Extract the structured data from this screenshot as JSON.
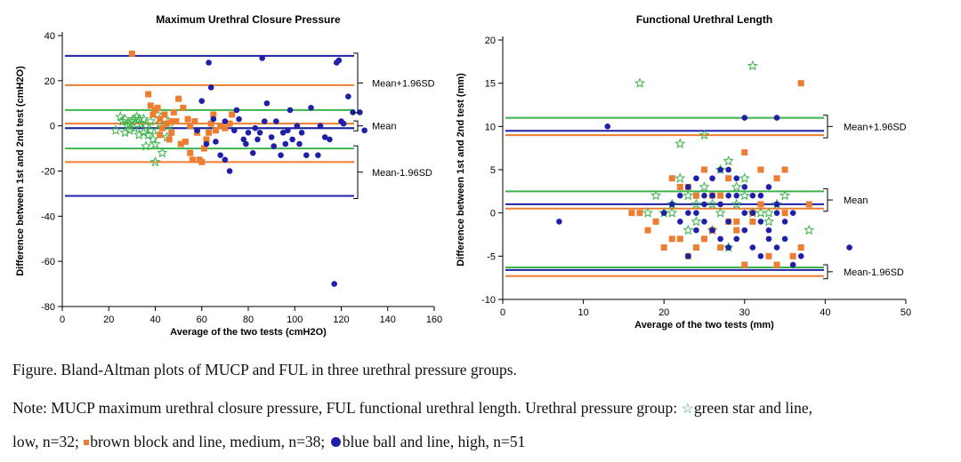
{
  "colors": {
    "low": "#3cb44b",
    "medium": "#ed7d31",
    "high": "#1f1fa8"
  },
  "chart_data": [
    {
      "type": "scatter",
      "title": "Maximum Urethral Closure Pressure",
      "xlabel": "Average of the two tests (cmH2O)",
      "ylabel": "Difference between 1st and 2nd test (cmH2O)",
      "xlim": [
        0,
        160
      ],
      "ylim": [
        -80,
        40
      ],
      "xticks": [
        0,
        20,
        40,
        60,
        80,
        100,
        120,
        140,
        160
      ],
      "yticks": [
        -80,
        -60,
        -40,
        -20,
        0,
        20,
        40
      ],
      "grid": false,
      "lines": [
        {
          "group": "high",
          "value": 31
        },
        {
          "group": "medium",
          "value": 18
        },
        {
          "group": "low",
          "value": 7
        },
        {
          "group": "medium",
          "value": 1
        },
        {
          "group": "low",
          "value": -1
        },
        {
          "group": "high",
          "value": -1
        },
        {
          "group": "low",
          "value": -10
        },
        {
          "group": "medium",
          "value": -16
        },
        {
          "group": "high",
          "value": -31
        }
      ],
      "brackets": [
        {
          "label": "Mean+1.96SD",
          "from": 31,
          "to": 7
        },
        {
          "label": "Mean",
          "from": 1,
          "to": -1
        },
        {
          "label": "Mean-1.96SD",
          "from": -10,
          "to": -31
        }
      ],
      "series": [
        {
          "group": "low",
          "marker": "star",
          "points": [
            [
              25,
              4
            ],
            [
              26,
              2
            ],
            [
              27,
              3
            ],
            [
              28,
              0
            ],
            [
              29,
              -2
            ],
            [
              30,
              2
            ],
            [
              31,
              -1
            ],
            [
              32,
              4
            ],
            [
              33,
              3
            ],
            [
              34,
              1
            ],
            [
              35,
              -3
            ],
            [
              36,
              0
            ],
            [
              37,
              -4
            ],
            [
              38,
              2
            ],
            [
              39,
              -6
            ],
            [
              40,
              -8
            ],
            [
              40,
              -16
            ],
            [
              41,
              -2
            ],
            [
              42,
              1
            ],
            [
              43,
              -12
            ],
            [
              44,
              3
            ],
            [
              45,
              -5
            ],
            [
              46,
              0
            ],
            [
              23,
              -2
            ],
            [
              27,
              -3
            ],
            [
              33,
              -4
            ],
            [
              35,
              3
            ],
            [
              38,
              -2
            ],
            [
              41,
              5
            ],
            [
              29,
              1
            ],
            [
              31,
              3
            ],
            [
              36,
              -9
            ]
          ]
        },
        {
          "group": "medium",
          "marker": "square",
          "points": [
            [
              30,
              32
            ],
            [
              37,
              14
            ],
            [
              38,
              9
            ],
            [
              39,
              5
            ],
            [
              40,
              7
            ],
            [
              41,
              8
            ],
            [
              42,
              3
            ],
            [
              43,
              -1
            ],
            [
              44,
              5
            ],
            [
              45,
              1
            ],
            [
              46,
              -6
            ],
            [
              47,
              2
            ],
            [
              48,
              6
            ],
            [
              50,
              12
            ],
            [
              51,
              -8
            ],
            [
              52,
              8
            ],
            [
              54,
              3
            ],
            [
              55,
              0
            ],
            [
              56,
              -15
            ],
            [
              57,
              2
            ],
            [
              58,
              -3
            ],
            [
              59,
              -15
            ],
            [
              60,
              -16
            ],
            [
              61,
              -10
            ],
            [
              62,
              -6
            ],
            [
              63,
              -3
            ],
            [
              64,
              1
            ],
            [
              65,
              5
            ],
            [
              66,
              -2
            ],
            [
              68,
              0
            ],
            [
              70,
              -1
            ],
            [
              72,
              1
            ],
            [
              73,
              5
            ],
            [
              42,
              -4
            ],
            [
              47,
              -3
            ],
            [
              49,
              2
            ],
            [
              53,
              -7
            ],
            [
              55,
              -12
            ]
          ]
        },
        {
          "group": "high",
          "marker": "circle",
          "points": [
            [
              58,
              -2
            ],
            [
              60,
              11
            ],
            [
              62,
              -8
            ],
            [
              63,
              28
            ],
            [
              64,
              17
            ],
            [
              66,
              -7
            ],
            [
              68,
              -13
            ],
            [
              70,
              -15
            ],
            [
              72,
              -20
            ],
            [
              74,
              -2
            ],
            [
              76,
              3
            ],
            [
              78,
              -6
            ],
            [
              80,
              -3
            ],
            [
              82,
              -12
            ],
            [
              84,
              -6
            ],
            [
              86,
              30
            ],
            [
              88,
              10
            ],
            [
              90,
              -5
            ],
            [
              92,
              2
            ],
            [
              94,
              -13
            ],
            [
              96,
              -8
            ],
            [
              97,
              -2
            ],
            [
              99,
              -6
            ],
            [
              101,
              0
            ],
            [
              103,
              -3
            ],
            [
              105,
              -13
            ],
            [
              107,
              8
            ],
            [
              110,
              -13
            ],
            [
              113,
              -5
            ],
            [
              115,
              -6
            ],
            [
              117,
              -70
            ],
            [
              118,
              28
            ],
            [
              119,
              29
            ],
            [
              120,
              2
            ],
            [
              123,
              13
            ],
            [
              125,
              6
            ],
            [
              128,
              6
            ],
            [
              130,
              -2
            ],
            [
              65,
              3
            ],
            [
              75,
              7
            ],
            [
              79,
              -8
            ],
            [
              83,
              -1
            ],
            [
              87,
              2
            ],
            [
              91,
              -9
            ],
            [
              95,
              -3
            ],
            [
              98,
              7
            ],
            [
              102,
              -8
            ],
            [
              111,
              0
            ],
            [
              121,
              1
            ],
            [
              70,
              2
            ],
            [
              85,
              -3
            ]
          ]
        }
      ]
    },
    {
      "type": "scatter",
      "title": "Functional Urethral Length",
      "xlabel": "Average of the two tests (mm)",
      "ylabel": "Difference between 1st and 2nd test (mm)",
      "xlim": [
        0,
        50
      ],
      "ylim": [
        -10,
        20
      ],
      "xticks": [
        0,
        10,
        20,
        30,
        40,
        50
      ],
      "yticks": [
        -10,
        -5,
        0,
        5,
        10,
        15,
        20
      ],
      "grid": false,
      "lines": [
        {
          "group": "low",
          "value": 11
        },
        {
          "group": "high",
          "value": 9.5
        },
        {
          "group": "medium",
          "value": 9
        },
        {
          "group": "low",
          "value": 2.5
        },
        {
          "group": "high",
          "value": 1
        },
        {
          "group": "medium",
          "value": 0.5
        },
        {
          "group": "low",
          "value": -6.3
        },
        {
          "group": "high",
          "value": -6.6
        },
        {
          "group": "medium",
          "value": -7.3
        }
      ],
      "brackets": [
        {
          "label": "Mean+1.96SD",
          "from": 11,
          "to": 9
        },
        {
          "label": "Mean",
          "from": 2.5,
          "to": 0.5
        },
        {
          "label": "Mean-1.96SD",
          "from": -6.3,
          "to": -7.3
        }
      ],
      "series": [
        {
          "group": "low",
          "marker": "star",
          "points": [
            [
              17,
              15
            ],
            [
              31,
              17
            ],
            [
              22,
              8
            ],
            [
              25,
              9
            ],
            [
              19,
              2
            ],
            [
              20,
              0
            ],
            [
              21,
              0
            ],
            [
              22,
              4
            ],
            [
              23,
              2
            ],
            [
              24,
              -1
            ],
            [
              25,
              3
            ],
            [
              26,
              1
            ],
            [
              27,
              5
            ],
            [
              28,
              6
            ],
            [
              29,
              3
            ],
            [
              30,
              2
            ],
            [
              31,
              0
            ],
            [
              32,
              0
            ],
            [
              33,
              -1
            ],
            [
              34,
              1
            ],
            [
              35,
              2
            ],
            [
              38,
              -2
            ],
            [
              18,
              0
            ],
            [
              21,
              1
            ],
            [
              24,
              1
            ],
            [
              26,
              -2
            ],
            [
              28,
              -4
            ],
            [
              30,
              4
            ],
            [
              27,
              0
            ],
            [
              33,
              0
            ],
            [
              23,
              -2
            ],
            [
              29,
              1
            ]
          ]
        },
        {
          "group": "medium",
          "marker": "square",
          "points": [
            [
              37,
              15
            ],
            [
              16,
              0
            ],
            [
              17,
              0
            ],
            [
              18,
              -2
            ],
            [
              19,
              -1
            ],
            [
              20,
              -4
            ],
            [
              21,
              -3
            ],
            [
              22,
              -3
            ],
            [
              23,
              -5
            ],
            [
              24,
              -4
            ],
            [
              25,
              -3
            ],
            [
              26,
              -2
            ],
            [
              27,
              -4
            ],
            [
              28,
              -1
            ],
            [
              29,
              -1
            ],
            [
              30,
              -6
            ],
            [
              31,
              0
            ],
            [
              32,
              1
            ],
            [
              33,
              -5
            ],
            [
              34,
              -6
            ],
            [
              35,
              0
            ],
            [
              36,
              -5
            ],
            [
              37,
              -4
            ],
            [
              38,
              1
            ],
            [
              21,
              4
            ],
            [
              22,
              3
            ],
            [
              24,
              2
            ],
            [
              25,
              5
            ],
            [
              27,
              2
            ],
            [
              28,
              4
            ],
            [
              30,
              7
            ],
            [
              32,
              5
            ],
            [
              34,
              4
            ],
            [
              35,
              5
            ],
            [
              23,
              3
            ],
            [
              26,
              2
            ],
            [
              29,
              -2
            ],
            [
              31,
              -1
            ]
          ]
        },
        {
          "group": "high",
          "marker": "circle",
          "points": [
            [
              7,
              -1
            ],
            [
              13,
              10
            ],
            [
              30,
              11
            ],
            [
              34,
              11
            ],
            [
              20,
              0
            ],
            [
              21,
              1
            ],
            [
              22,
              2
            ],
            [
              23,
              -5
            ],
            [
              24,
              4
            ],
            [
              25,
              -1
            ],
            [
              26,
              2
            ],
            [
              27,
              5
            ],
            [
              28,
              -4
            ],
            [
              29,
              2
            ],
            [
              30,
              3
            ],
            [
              31,
              0
            ],
            [
              32,
              -5
            ],
            [
              33,
              -2
            ],
            [
              34,
              0
            ],
            [
              35,
              -1
            ],
            [
              36,
              -6
            ],
            [
              37,
              -5
            ],
            [
              43,
              -4
            ],
            [
              24,
              0
            ],
            [
              26,
              -2
            ],
            [
              28,
              5
            ],
            [
              30,
              -2
            ],
            [
              32,
              2
            ],
            [
              34,
              1
            ],
            [
              22,
              -1
            ],
            [
              23,
              0
            ],
            [
              25,
              2
            ],
            [
              27,
              1
            ],
            [
              29,
              -3
            ],
            [
              31,
              -4
            ],
            [
              33,
              3
            ],
            [
              35,
              -3
            ],
            [
              26,
              4
            ],
            [
              28,
              -1
            ],
            [
              30,
              0
            ],
            [
              24,
              -2
            ],
            [
              27,
              -3
            ],
            [
              31,
              2
            ],
            [
              33,
              -3
            ],
            [
              25,
              1
            ],
            [
              29,
              4
            ],
            [
              32,
              -1
            ],
            [
              36,
              0
            ],
            [
              28,
              2
            ],
            [
              23,
              3
            ],
            [
              34,
              -4
            ]
          ]
        }
      ]
    }
  ],
  "caption": {
    "line1": "Figure. Bland-Altman plots of MUCP and FUL in three urethral pressure groups.",
    "line2a": "Note: MUCP maximum urethral closure pressure, FUL functional urethral length. Urethral pressure group: ",
    "line2b": "green star and line,",
    "line3a": "low, n=32; ",
    "line3b": "brown block and line, medium, n=38; ",
    "line3c": "blue ball and line, high, n=51"
  }
}
